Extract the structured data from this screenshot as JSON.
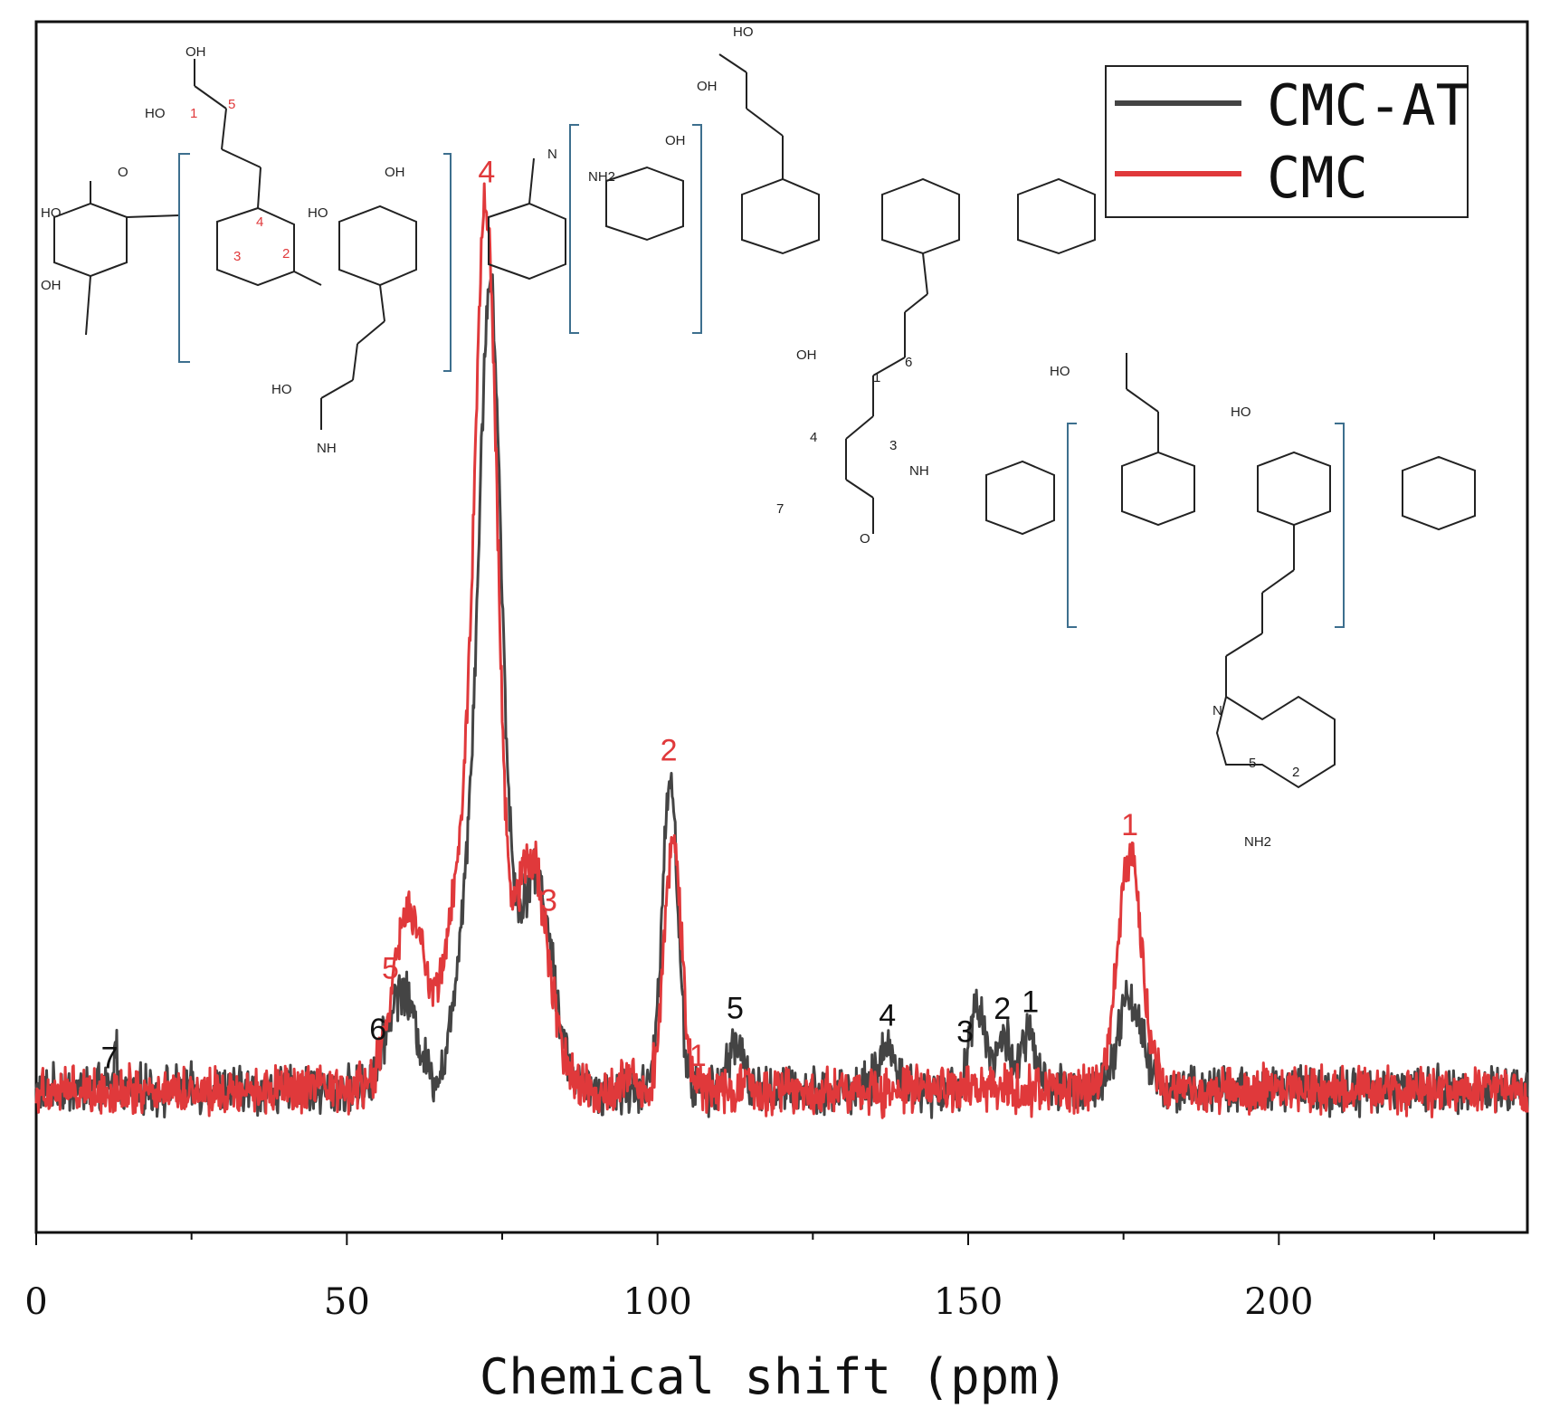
{
  "chart_data": {
    "type": "line",
    "title": "",
    "xlabel": "Chemical shift (ppm)",
    "ylabel": "",
    "xlim": [
      0,
      240
    ],
    "ylim": [
      -0.2,
      1.5
    ],
    "x_ticks": [
      0,
      50,
      100,
      150,
      200
    ],
    "x_tick_labels": [
      "0",
      "50",
      "100",
      "150",
      "200"
    ],
    "grid": false,
    "legend": {
      "placement": "top-right",
      "entries": [
        "CMC-AT",
        "CMC"
      ]
    },
    "series": [
      {
        "name": "CMC-AT",
        "color": "#444444",
        "baseline": 0.0,
        "peaks": [
          {
            "x": 12.8,
            "h": 0.07,
            "w": 0.25
          },
          {
            "x": 58.8,
            "h": 0.14,
            "w": 2.4
          },
          {
            "x": 69.5,
            "h": 0.25,
            "w": 2.0
          },
          {
            "x": 73.0,
            "h": 0.9,
            "w": 1.7
          },
          {
            "x": 74.5,
            "h": 0.22,
            "w": 2.2
          },
          {
            "x": 80.5,
            "h": 0.3,
            "w": 2.6
          },
          {
            "x": 102.0,
            "h": 0.44,
            "w": 1.25
          },
          {
            "x": 112.5,
            "h": 0.07,
            "w": 1.2
          },
          {
            "x": 137.0,
            "h": 0.06,
            "w": 1.4
          },
          {
            "x": 151.5,
            "h": 0.12,
            "w": 1.3
          },
          {
            "x": 155.8,
            "h": 0.07,
            "w": 1.3
          },
          {
            "x": 159.8,
            "h": 0.08,
            "w": 1.1
          },
          {
            "x": 176.0,
            "h": 0.13,
            "w": 2.0
          }
        ]
      },
      {
        "name": "CMC",
        "color": "#e0393b",
        "baseline": 0.0,
        "peaks": [
          {
            "x": 60.0,
            "h": 0.25,
            "w": 2.6
          },
          {
            "x": 68.5,
            "h": 0.3,
            "w": 2.6
          },
          {
            "x": 72.5,
            "h": 1.14,
            "w": 1.8
          },
          {
            "x": 79.5,
            "h": 0.33,
            "w": 2.8
          },
          {
            "x": 102.5,
            "h": 0.35,
            "w": 1.4
          },
          {
            "x": 95.5,
            "h": 0.03,
            "w": 0.8
          },
          {
            "x": 176.0,
            "h": 0.33,
            "w": 2.0
          }
        ]
      }
    ],
    "annotations_red": [
      {
        "text": "4",
        "x": 72.5
      },
      {
        "text": "3",
        "x": 82.5
      },
      {
        "text": "2",
        "x": 101.8
      },
      {
        "text": "5",
        "x": 57.0
      },
      {
        "text": "1",
        "x": 106.5
      },
      {
        "text": "1",
        "x": 176.0
      }
    ],
    "annotations_black": [
      {
        "text": "7",
        "x": 11.8
      },
      {
        "text": "6",
        "x": 55.0
      },
      {
        "text": "5",
        "x": 112.5
      },
      {
        "text": "4",
        "x": 137.0
      },
      {
        "text": "3",
        "x": 149.5
      },
      {
        "text": "2",
        "x": 155.5
      },
      {
        "text": "1",
        "x": 160.0
      }
    ]
  },
  "structures": {
    "labels": [
      "HO",
      "OH",
      "O",
      "HO",
      "OH",
      "HO",
      "OH",
      "HO",
      "NH",
      "N",
      "NH2",
      "OH",
      "OH",
      "HO",
      "OH"
    ],
    "carbon_numbers_red": [
      "1",
      "5",
      "4",
      "3",
      "2"
    ],
    "carbon_numbers_black": [
      "1",
      "6",
      "4",
      "3",
      "7",
      "5",
      "2"
    ]
  }
}
